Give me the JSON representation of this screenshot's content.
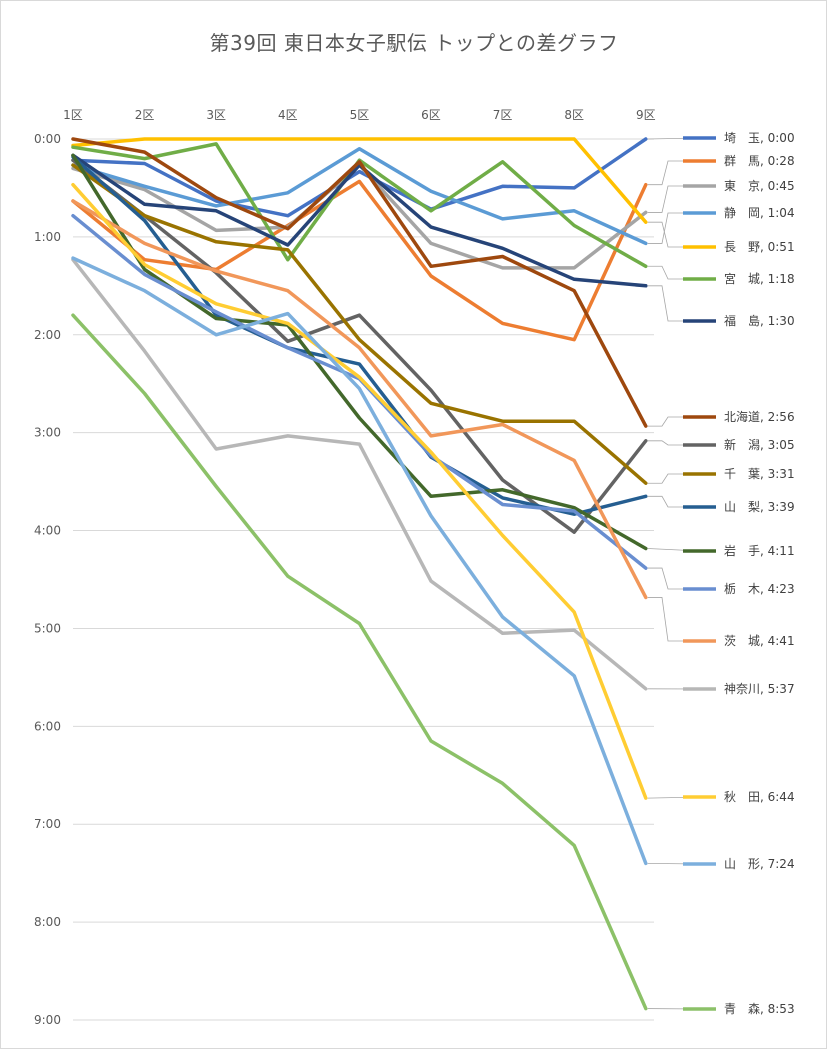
{
  "chart_data": {
    "type": "line",
    "title": "第39回 東日本女子駅伝 トップとの差グラフ",
    "categories": [
      "1区",
      "2区",
      "3区",
      "4区",
      "5区",
      "6区",
      "7区",
      "8区",
      "9区"
    ],
    "y_tick_labels": [
      "0:00",
      "1:00",
      "2:00",
      "3:00",
      "4:00",
      "5:00",
      "6:00",
      "7:00",
      "8:00",
      "9:00"
    ],
    "y_unit": "seconds behind leader",
    "ylim": [
      0,
      540
    ],
    "y_reversed": true,
    "x_axis_position": "top",
    "grid": true,
    "legend": "right, labels at series end",
    "series": [
      {
        "name": "埼　玉",
        "label": "埼　玉, 0:00",
        "color": "#4472c4",
        "values": [
          13,
          15,
          38,
          47,
          20,
          43,
          29,
          30,
          0
        ]
      },
      {
        "name": "群　馬",
        "label": "群　馬, 0:28",
        "color": "#ed7d31",
        "values": [
          38,
          74,
          80,
          53,
          26,
          84,
          113,
          123,
          28
        ]
      },
      {
        "name": "東　京",
        "label": "東　京, 0:45",
        "color": "#a5a5a5",
        "values": [
          18,
          31,
          56,
          54,
          16,
          64,
          79,
          79,
          45
        ]
      },
      {
        "name": "静　岡",
        "label": "静　岡, 1:04",
        "color": "#5b9bd5",
        "values": [
          16,
          29,
          41,
          33,
          6,
          32,
          49,
          44,
          64
        ]
      },
      {
        "name": "長　野",
        "label": "長　野, 0:51",
        "color": "#ffc000",
        "values": [
          4,
          0,
          0,
          0,
          0,
          0,
          0,
          0,
          51
        ]
      },
      {
        "name": "宮　城",
        "label": "宮　城, 1:18",
        "color": "#70ad47",
        "values": [
          5,
          12,
          3,
          74,
          13,
          44,
          14,
          53,
          78
        ]
      },
      {
        "name": "福　島",
        "label": "福　島, 1:30",
        "color": "#264478",
        "values": [
          10,
          40,
          44,
          65,
          16,
          54,
          67,
          86,
          90
        ]
      },
      {
        "name": "北海道",
        "label": "北海道, 2:56",
        "color": "#9e480e",
        "values": [
          0,
          8,
          36,
          55,
          14,
          78,
          72,
          93,
          176
        ]
      },
      {
        "name": "新　潟",
        "label": "新　潟, 3:05",
        "color": "#636363",
        "values": [
          13,
          47,
          82,
          124,
          108,
          154,
          209,
          241,
          185
        ]
      },
      {
        "name": "千　葉",
        "label": "千　葉, 3:31",
        "color": "#997300",
        "values": [
          16,
          47,
          63,
          68,
          123,
          162,
          173,
          173,
          211
        ]
      },
      {
        "name": "山　梨",
        "label": "山　梨, 3:39",
        "color": "#255e91",
        "values": [
          11,
          50,
          108,
          128,
          138,
          195,
          220,
          230,
          219
        ]
      },
      {
        "name": "岩　手",
        "label": "岩　手, 4:11",
        "color": "#43682b",
        "values": [
          10,
          80,
          110,
          114,
          171,
          219,
          215,
          226,
          251
        ]
      },
      {
        "name": "栃　木",
        "label": "栃　木, 4:23",
        "color": "#698ed0",
        "values": [
          47,
          83,
          106,
          128,
          147,
          194,
          224,
          228,
          263
        ]
      },
      {
        "name": "茨　城",
        "label": "茨　城, 4:41",
        "color": "#f1975a",
        "values": [
          38,
          64,
          81,
          93,
          128,
          182,
          175,
          197,
          281
        ]
      },
      {
        "name": "神奈川",
        "label": "神奈川, 5:37",
        "color": "#b7b7b7",
        "values": [
          74,
          130,
          190,
          182,
          187,
          271,
          303,
          301,
          337
        ]
      },
      {
        "name": "秋　田",
        "label": "秋　田, 6:44",
        "color": "#ffcd33",
        "values": [
          28,
          77,
          101,
          113,
          146,
          192,
          243,
          290,
          404
        ]
      },
      {
        "name": "山　形",
        "label": "山　形, 7:24",
        "color": "#7cafdd",
        "values": [
          73,
          93,
          120,
          107,
          153,
          231,
          293,
          329,
          444
        ]
      },
      {
        "name": "青　森",
        "label": "青　森, 8:53",
        "color": "#8cc168",
        "values": [
          108,
          156,
          213,
          268,
          297,
          369,
          395,
          433,
          533
        ]
      }
    ]
  }
}
